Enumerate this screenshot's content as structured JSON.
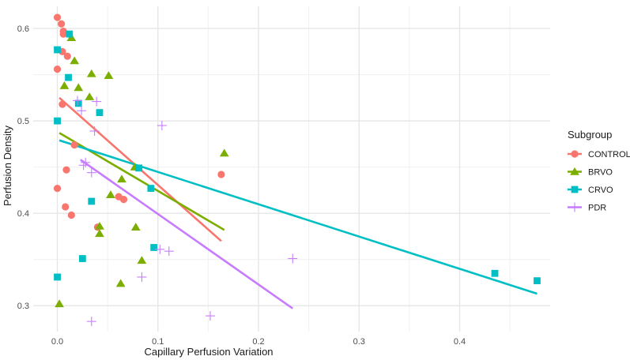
{
  "chart_data": {
    "type": "scatter",
    "title": "",
    "xlabel": "Capillary Perfusion Variation",
    "ylabel": "Perfusion Density",
    "xlim": [
      -0.024,
      0.49
    ],
    "ylim": [
      0.272,
      0.624
    ],
    "x_ticks": [
      0.0,
      0.1,
      0.2,
      0.3,
      0.4
    ],
    "x_tick_labels": [
      "0.0",
      "0.1",
      "0.2",
      "0.3",
      "0.4"
    ],
    "y_ticks": [
      0.3,
      0.4,
      0.5,
      0.6
    ],
    "y_tick_labels": [
      "0.3",
      "0.4",
      "0.5",
      "0.6"
    ],
    "grid": true,
    "legend": {
      "title": "Subgroup",
      "placement": "right"
    },
    "series": [
      {
        "name": "CONTROL",
        "color": "#F8766D",
        "marker": "circle",
        "points": [
          [
            0.0,
            0.612
          ],
          [
            0.004,
            0.605
          ],
          [
            0.006,
            0.597
          ],
          [
            0.006,
            0.594
          ],
          [
            0.005,
            0.575
          ],
          [
            0.01,
            0.57
          ],
          [
            0.0,
            0.556
          ],
          [
            0.005,
            0.518
          ],
          [
            0.017,
            0.474
          ],
          [
            0.009,
            0.447
          ],
          [
            0.0,
            0.427
          ],
          [
            0.008,
            0.407
          ],
          [
            0.014,
            0.398
          ],
          [
            0.061,
            0.418
          ],
          [
            0.066,
            0.415
          ],
          [
            0.04,
            0.385
          ],
          [
            0.163,
            0.442
          ]
        ],
        "fit": [
          [
            0.002,
            0.525
          ],
          [
            0.163,
            0.37
          ]
        ]
      },
      {
        "name": "BRVO",
        "color": "#7CAE00",
        "marker": "triangle",
        "points": [
          [
            0.014,
            0.59
          ],
          [
            0.017,
            0.565
          ],
          [
            0.034,
            0.551
          ],
          [
            0.051,
            0.549
          ],
          [
            0.007,
            0.538
          ],
          [
            0.021,
            0.536
          ],
          [
            0.032,
            0.526
          ],
          [
            0.077,
            0.45
          ],
          [
            0.064,
            0.437
          ],
          [
            0.053,
            0.42
          ],
          [
            0.042,
            0.386
          ],
          [
            0.042,
            0.378
          ],
          [
            0.078,
            0.385
          ],
          [
            0.084,
            0.349
          ],
          [
            0.063,
            0.324
          ],
          [
            0.002,
            0.302
          ],
          [
            0.166,
            0.465
          ]
        ],
        "fit": [
          [
            0.002,
            0.487
          ],
          [
            0.166,
            0.382
          ]
        ]
      },
      {
        "name": "CRVO",
        "color": "#00BFC4",
        "marker": "square",
        "points": [
          [
            0.012,
            0.594
          ],
          [
            0.0,
            0.577
          ],
          [
            0.011,
            0.547
          ],
          [
            0.021,
            0.519
          ],
          [
            0.042,
            0.509
          ],
          [
            0.0,
            0.5
          ],
          [
            0.081,
            0.449
          ],
          [
            0.093,
            0.427
          ],
          [
            0.034,
            0.413
          ],
          [
            0.096,
            0.363
          ],
          [
            0.025,
            0.351
          ],
          [
            0.0,
            0.331
          ],
          [
            0.435,
            0.335
          ],
          [
            0.477,
            0.327
          ]
        ],
        "fit": [
          [
            0.002,
            0.479
          ],
          [
            0.477,
            0.313
          ]
        ]
      },
      {
        "name": "PDR",
        "color": "#C77CFF",
        "marker": "plus",
        "points": [
          [
            0.02,
            0.522
          ],
          [
            0.039,
            0.521
          ],
          [
            0.024,
            0.511
          ],
          [
            0.037,
            0.489
          ],
          [
            0.104,
            0.495
          ],
          [
            0.028,
            0.455
          ],
          [
            0.026,
            0.452
          ],
          [
            0.034,
            0.444
          ],
          [
            0.102,
            0.361
          ],
          [
            0.111,
            0.359
          ],
          [
            0.084,
            0.331
          ],
          [
            0.034,
            0.283
          ],
          [
            0.152,
            0.289
          ],
          [
            0.234,
            0.351
          ]
        ],
        "fit": [
          [
            0.023,
            0.458
          ],
          [
            0.234,
            0.297
          ]
        ]
      }
    ]
  }
}
